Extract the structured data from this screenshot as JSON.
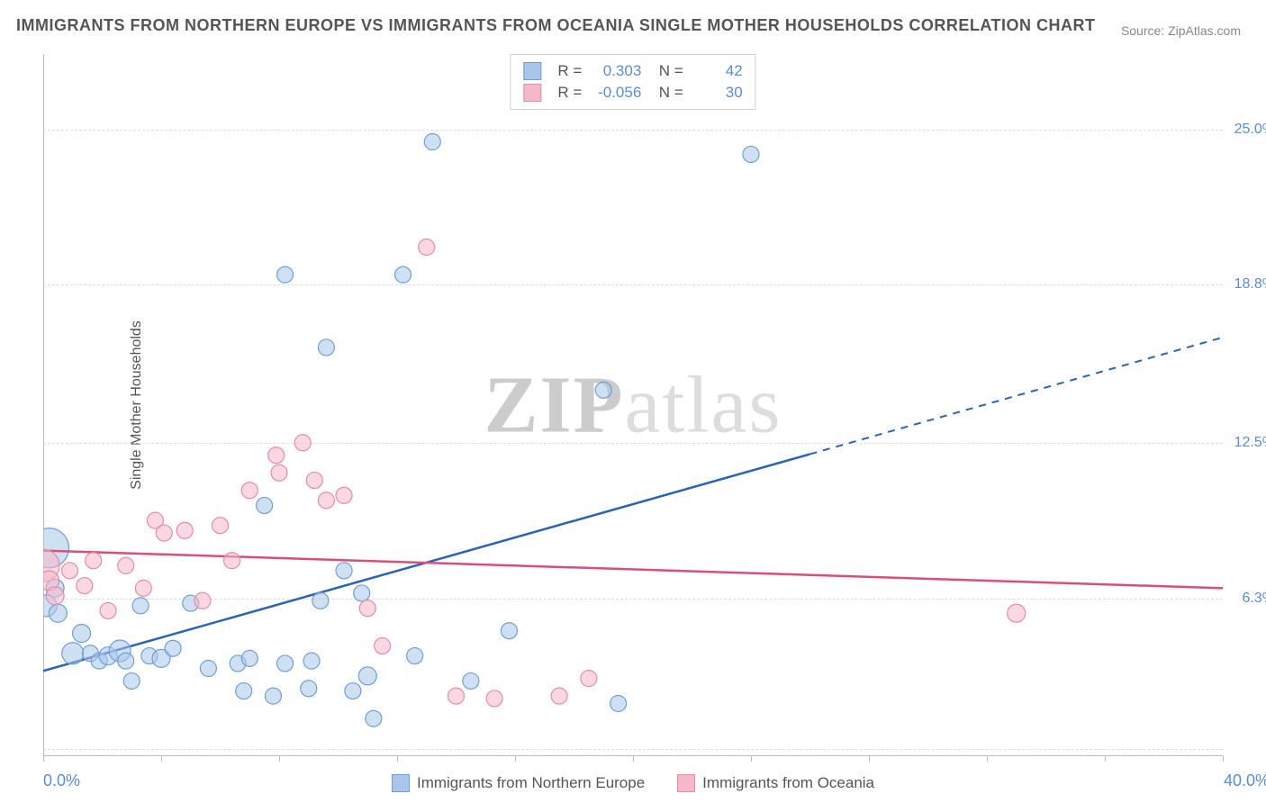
{
  "title": "IMMIGRANTS FROM NORTHERN EUROPE VS IMMIGRANTS FROM OCEANIA SINGLE MOTHER HOUSEHOLDS CORRELATION CHART",
  "source": "Source: ZipAtlas.com",
  "y_axis_label": "Single Mother Households",
  "watermark": {
    "part1": "ZIP",
    "part2": "atlas"
  },
  "chart": {
    "type": "scatter",
    "xlim": [
      0,
      40
    ],
    "ylim": [
      0,
      28
    ],
    "x_min_label": "0.0%",
    "x_max_label": "40.0%",
    "y_ticks": [
      {
        "value": 6.3,
        "label": "6.3%"
      },
      {
        "value": 12.5,
        "label": "12.5%"
      },
      {
        "value": 18.8,
        "label": "18.8%"
      },
      {
        "value": 25.0,
        "label": "25.0%"
      }
    ],
    "y_grid_extra": [
      0.3
    ],
    "x_ticks": [
      0,
      4,
      8,
      12,
      16,
      20,
      24,
      28,
      32,
      36,
      40
    ],
    "background_color": "#ffffff",
    "grid_color": "#dddddd",
    "axis_tick_label_color": "#5b8dd6",
    "series": [
      {
        "name": "Immigrants from Northern Europe",
        "key": "northern_europe",
        "fill": "#a9c6ea",
        "stroke": "#6f9fd8",
        "fill_opacity": 0.55,
        "line_color": "#2b63b5",
        "r_value": "0.303",
        "n_value": "42",
        "trend": {
          "x1": 0,
          "y1": 3.4,
          "x2": 40,
          "y2": 16.7,
          "solid_until_x": 26
        },
        "points": [
          {
            "x": 0.2,
            "y": 8.3,
            "r": 22
          },
          {
            "x": 0.4,
            "y": 6.7,
            "r": 10
          },
          {
            "x": 0.1,
            "y": 6.0,
            "r": 12
          },
          {
            "x": 0.5,
            "y": 5.7,
            "r": 10
          },
          {
            "x": 1.3,
            "y": 4.9,
            "r": 10
          },
          {
            "x": 1.0,
            "y": 4.1,
            "r": 12
          },
          {
            "x": 1.6,
            "y": 4.1,
            "r": 9
          },
          {
            "x": 1.9,
            "y": 3.8,
            "r": 9
          },
          {
            "x": 2.2,
            "y": 4.0,
            "r": 10
          },
          {
            "x": 2.6,
            "y": 4.2,
            "r": 12
          },
          {
            "x": 2.8,
            "y": 3.8,
            "r": 9
          },
          {
            "x": 3.0,
            "y": 3.0,
            "r": 9
          },
          {
            "x": 3.3,
            "y": 6.0,
            "r": 9
          },
          {
            "x": 3.6,
            "y": 4.0,
            "r": 9
          },
          {
            "x": 4.0,
            "y": 3.9,
            "r": 10
          },
          {
            "x": 4.4,
            "y": 4.3,
            "r": 9
          },
          {
            "x": 5.0,
            "y": 6.1,
            "r": 9
          },
          {
            "x": 5.6,
            "y": 3.5,
            "r": 9
          },
          {
            "x": 6.6,
            "y": 3.7,
            "r": 9
          },
          {
            "x": 6.8,
            "y": 2.6,
            "r": 9
          },
          {
            "x": 7.0,
            "y": 3.9,
            "r": 9
          },
          {
            "x": 7.5,
            "y": 10.0,
            "r": 9
          },
          {
            "x": 7.8,
            "y": 2.4,
            "r": 9
          },
          {
            "x": 8.2,
            "y": 3.7,
            "r": 9
          },
          {
            "x": 8.2,
            "y": 19.2,
            "r": 9
          },
          {
            "x": 9.0,
            "y": 2.7,
            "r": 9
          },
          {
            "x": 9.1,
            "y": 3.8,
            "r": 9
          },
          {
            "x": 9.4,
            "y": 6.2,
            "r": 9
          },
          {
            "x": 9.6,
            "y": 16.3,
            "r": 9
          },
          {
            "x": 10.2,
            "y": 7.4,
            "r": 9
          },
          {
            "x": 10.5,
            "y": 2.6,
            "r": 9
          },
          {
            "x": 10.8,
            "y": 6.5,
            "r": 9
          },
          {
            "x": 11.0,
            "y": 3.2,
            "r": 10
          },
          {
            "x": 11.2,
            "y": 1.5,
            "r": 9
          },
          {
            "x": 12.2,
            "y": 19.2,
            "r": 9
          },
          {
            "x": 12.6,
            "y": 4.0,
            "r": 9
          },
          {
            "x": 13.2,
            "y": 24.5,
            "r": 9
          },
          {
            "x": 14.5,
            "y": 3.0,
            "r": 9
          },
          {
            "x": 15.8,
            "y": 5.0,
            "r": 9
          },
          {
            "x": 19.0,
            "y": 14.6,
            "r": 9
          },
          {
            "x": 19.5,
            "y": 2.1,
            "r": 9
          },
          {
            "x": 24.0,
            "y": 24.0,
            "r": 9
          }
        ]
      },
      {
        "name": "Immigrants from Oceania",
        "key": "oceania",
        "fill": "#f5b8c8",
        "stroke": "#e88ba6",
        "fill_opacity": 0.55,
        "line_color": "#d94f78",
        "r_value": "-0.056",
        "n_value": "30",
        "trend": {
          "x1": 0,
          "y1": 8.2,
          "x2": 40,
          "y2": 6.7,
          "solid_until_x": 40
        },
        "points": [
          {
            "x": 0.0,
            "y": 7.6,
            "r": 18
          },
          {
            "x": 0.2,
            "y": 7.0,
            "r": 11
          },
          {
            "x": 0.4,
            "y": 6.4,
            "r": 10
          },
          {
            "x": 0.9,
            "y": 7.4,
            "r": 9
          },
          {
            "x": 1.4,
            "y": 6.8,
            "r": 9
          },
          {
            "x": 1.7,
            "y": 7.8,
            "r": 9
          },
          {
            "x": 2.2,
            "y": 5.8,
            "r": 9
          },
          {
            "x": 2.8,
            "y": 7.6,
            "r": 9
          },
          {
            "x": 3.4,
            "y": 6.7,
            "r": 9
          },
          {
            "x": 3.8,
            "y": 9.4,
            "r": 9
          },
          {
            "x": 4.1,
            "y": 8.9,
            "r": 9
          },
          {
            "x": 4.8,
            "y": 9.0,
            "r": 9
          },
          {
            "x": 5.4,
            "y": 6.2,
            "r": 9
          },
          {
            "x": 6.0,
            "y": 9.2,
            "r": 9
          },
          {
            "x": 6.4,
            "y": 7.8,
            "r": 9
          },
          {
            "x": 7.0,
            "y": 10.6,
            "r": 9
          },
          {
            "x": 7.9,
            "y": 12.0,
            "r": 9
          },
          {
            "x": 8.0,
            "y": 11.3,
            "r": 9
          },
          {
            "x": 8.8,
            "y": 12.5,
            "r": 9
          },
          {
            "x": 9.2,
            "y": 11.0,
            "r": 9
          },
          {
            "x": 9.6,
            "y": 10.2,
            "r": 9
          },
          {
            "x": 10.2,
            "y": 10.4,
            "r": 9
          },
          {
            "x": 11.0,
            "y": 5.9,
            "r": 9
          },
          {
            "x": 11.5,
            "y": 4.4,
            "r": 9
          },
          {
            "x": 13.0,
            "y": 20.3,
            "r": 9
          },
          {
            "x": 14.0,
            "y": 2.4,
            "r": 9
          },
          {
            "x": 15.3,
            "y": 2.3,
            "r": 9
          },
          {
            "x": 17.5,
            "y": 2.4,
            "r": 9
          },
          {
            "x": 18.5,
            "y": 3.1,
            "r": 9
          },
          {
            "x": 33.0,
            "y": 5.7,
            "r": 10
          }
        ]
      }
    ],
    "top_legend": {
      "r_label": "R =",
      "n_label": "N ="
    },
    "bottom_legend": [
      {
        "label": "Immigrants from Northern Europe",
        "fill": "#a9c6ea",
        "stroke": "#6f9fd8"
      },
      {
        "label": "Immigrants from Oceania",
        "fill": "#f5b8c8",
        "stroke": "#e88ba6"
      }
    ]
  }
}
